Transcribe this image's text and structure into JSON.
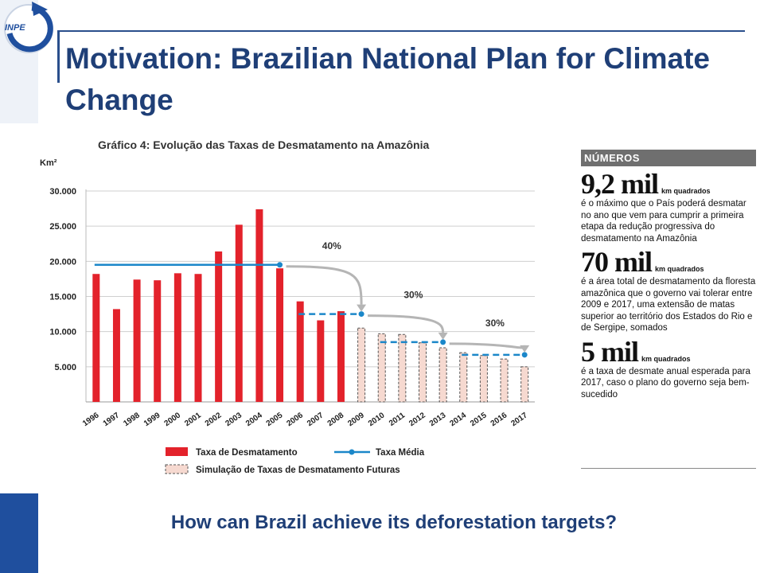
{
  "logo_text": "INPE",
  "title": "Motivation: Brazilian National Plan for Climate Change",
  "question": "How can Brazil achieve its deforestation targets?",
  "chart_data": {
    "type": "bar",
    "title": "Gráfico 4: Evolução das Taxas de Desmatamento na Amazônia",
    "ylabel": "Km²",
    "ylim": [
      0,
      30000
    ],
    "yticks": [
      5000,
      10000,
      15000,
      20000,
      25000,
      30000
    ],
    "ytick_labels": [
      "5.000",
      "10.000",
      "15.000",
      "20.000",
      "25.000",
      "30.000"
    ],
    "categories": [
      "1996",
      "1997",
      "1998",
      "1999",
      "2000",
      "2001",
      "2002",
      "2003",
      "2004",
      "2005",
      "2006",
      "2007",
      "2008",
      "2009",
      "2010",
      "2011",
      "2012",
      "2013",
      "2014",
      "2015",
      "2016",
      "2017"
    ],
    "series": [
      {
        "name": "Taxa de Desmatamento",
        "color": "#e3222b",
        "values": [
          18200,
          13200,
          17400,
          17300,
          18300,
          18200,
          21400,
          25200,
          27400,
          19000,
          14300,
          11600,
          12900,
          null,
          null,
          null,
          null,
          null,
          null,
          null,
          null,
          null
        ]
      },
      {
        "name": "Simulação de Taxas de Desmatamento Futuras",
        "color": "#f6d9d0",
        "values": [
          null,
          null,
          null,
          null,
          null,
          null,
          null,
          null,
          null,
          null,
          null,
          null,
          null,
          10500,
          9700,
          9600,
          8400,
          7700,
          7000,
          6600,
          6100,
          5000
        ]
      },
      {
        "name": "Taxa Média",
        "color": "#1b87c9",
        "segments": [
          {
            "from": "1996",
            "to": "2005",
            "value": 19500
          },
          {
            "from": "2006",
            "to": "2009",
            "value": 12500
          },
          {
            "from": "2010",
            "to": "2013",
            "value": 8500
          },
          {
            "from": "2014",
            "to": "2017",
            "value": 6700
          }
        ]
      }
    ],
    "annotations": [
      "40%",
      "30%",
      "30%"
    ],
    "legend_position": "bottom"
  },
  "sidebar": {
    "header": "NÚMEROS",
    "items": [
      {
        "big": "9,2 mil",
        "unit": "km quadrados",
        "desc": "é o máximo que o País poderá desmatar no ano que vem para cumprir a primeira etapa da redução progressiva do desmatamento na Amazônia"
      },
      {
        "big": "70 mil",
        "unit": "km quadrados",
        "desc": "é a área total de desmatamento da floresta amazônica que o governo vai tolerar entre 2009 e 2017, uma extensão de matas superior ao território dos Estados do Rio e de Sergipe, somados"
      },
      {
        "big": "5 mil",
        "unit": "km quadrados",
        "desc": "é a taxa de desmate anual esperada para 2017, caso o plano do governo seja bem-sucedido"
      }
    ]
  }
}
